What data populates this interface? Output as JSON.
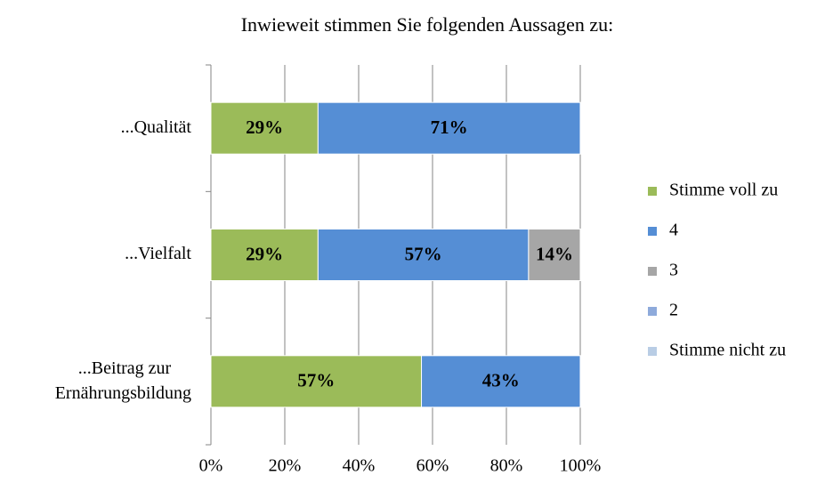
{
  "chart_data": {
    "type": "stacked_barh",
    "title": "Inwieweit stimmen Sie folgenden Aussagen zu:",
    "categories": [
      "...Qualität",
      "...Vielfalt",
      "...Beitrag zur Ernährungsbildung"
    ],
    "series": [
      {
        "name": "Stimme voll zu",
        "color": "#9bbb59",
        "values": [
          29,
          29,
          57
        ],
        "value_labels": [
          "29%",
          "29%",
          "57%"
        ]
      },
      {
        "name": "4",
        "color": "#558ed5",
        "values": [
          71,
          57,
          43
        ],
        "value_labels": [
          "71%",
          "57%",
          "43%"
        ]
      },
      {
        "name": "3",
        "color": "#a6a6a6",
        "values": [
          0,
          14,
          0
        ],
        "value_labels": [
          null,
          "14%",
          null
        ]
      },
      {
        "name": "2",
        "color": "#8eaadb",
        "values": [
          0,
          0,
          0
        ],
        "value_labels": [
          null,
          null,
          null
        ]
      },
      {
        "name": "Stimme nicht zu",
        "color": "#b9cde5",
        "values": [
          0,
          0,
          0
        ],
        "value_labels": [
          null,
          null,
          null
        ]
      }
    ],
    "xlim": [
      0,
      100
    ],
    "xticks": [
      {
        "value": 0,
        "label": "0%"
      },
      {
        "value": 20,
        "label": "20%"
      },
      {
        "value": 40,
        "label": "40%"
      },
      {
        "value": 60,
        "label": "60%"
      },
      {
        "value": 80,
        "label": "80%"
      },
      {
        "value": 100,
        "label": "100%"
      }
    ],
    "grid": true,
    "legend": "right"
  }
}
